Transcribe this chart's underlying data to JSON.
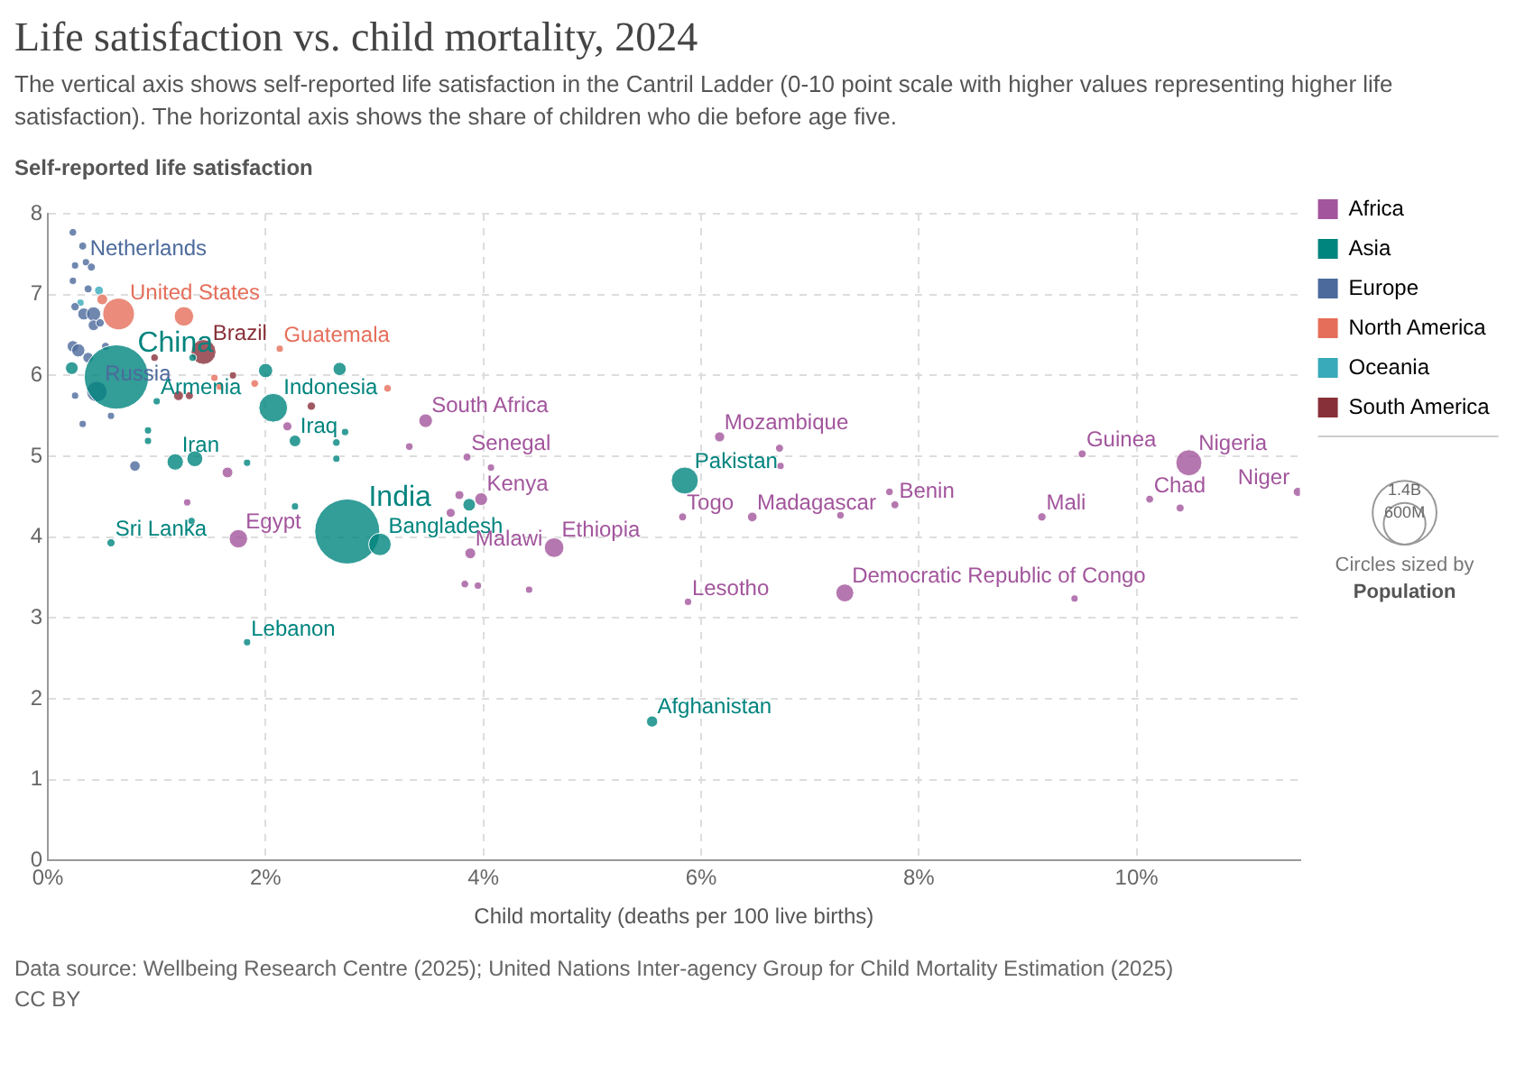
{
  "chart_data": {
    "type": "bubble",
    "title": "Life satisfaction vs. child mortality, 2024",
    "subtitle": "The vertical axis shows self-reported life satisfaction in the Cantril Ladder (0-10 point scale with higher values representing higher life satisfaction). The horizontal axis shows the share of children who die before age five.",
    "xlabel": "Child mortality (deaths per 100 live births)",
    "ylabel": "Self-reported life satisfaction",
    "xlim": [
      0,
      11.5
    ],
    "xticks": [
      {
        "value": 0,
        "label": "0%"
      },
      {
        "value": 2,
        "label": "2%"
      },
      {
        "value": 4,
        "label": "4%"
      },
      {
        "value": 6,
        "label": "6%"
      },
      {
        "value": 8,
        "label": "8%"
      },
      {
        "value": 10,
        "label": "10%"
      }
    ],
    "ylim": [
      0,
      8
    ],
    "yticks": [
      0,
      1,
      2,
      3,
      4,
      5,
      6,
      7,
      8
    ],
    "grid": true,
    "legend": "right",
    "size_legend": [
      {
        "value": 600,
        "label": "600M"
      },
      {
        "value": 1400,
        "label": "1.4B"
      }
    ],
    "series": [
      {
        "name": "Africa",
        "color": "#a2559c",
        "x": [
          3.47,
          3.85,
          3.98,
          3.88,
          4.65,
          1.75,
          5.83,
          5.88,
          6.17,
          6.47,
          7.78,
          7.32,
          9.13,
          9.5,
          10.48,
          10.12,
          11.48,
          7.28,
          7.73,
          6.72,
          6.73,
          10.4,
          9.43,
          3.32,
          4.07,
          3.78,
          3.7,
          3.83,
          3.95,
          4.42,
          1.65,
          2.2,
          1.28
        ],
        "values": [
          5.44,
          4.99,
          4.47,
          3.8,
          3.87,
          3.98,
          4.25,
          3.2,
          5.24,
          4.25,
          4.4,
          3.31,
          4.25,
          5.03,
          4.92,
          4.47,
          4.56,
          4.27,
          4.56,
          5.1,
          4.88,
          4.36,
          3.24,
          5.12,
          4.86,
          4.52,
          4.3,
          3.42,
          3.4,
          3.35,
          4.8,
          5.37,
          4.43
        ],
        "sizes": [
          64,
          22,
          56,
          40,
          132,
          117,
          22,
          18,
          35,
          32,
          22,
          110,
          24,
          22,
          233,
          21,
          28,
          20,
          20,
          22,
          18,
          22,
          18,
          20,
          18,
          28,
          28,
          20,
          18,
          18,
          40,
          28,
          18
        ]
      },
      {
        "name": "Asia",
        "color": "#00847e",
        "x": [
          0.63,
          2.75,
          2.07,
          3.05,
          5.85,
          1.17,
          1.35,
          2.27,
          1.0,
          0.58,
          1.83,
          5.55,
          2.0,
          2.68,
          2.73,
          2.65,
          1.83,
          1.33,
          0.22,
          0.92,
          0.92,
          1.32,
          2.27,
          2.65,
          3.87
        ],
        "values": [
          5.98,
          4.07,
          5.6,
          3.91,
          4.7,
          4.93,
          4.97,
          5.19,
          5.68,
          3.93,
          2.7,
          1.72,
          6.06,
          6.08,
          5.3,
          4.97,
          4.92,
          6.22,
          6.09,
          5.32,
          5.19,
          4.2,
          4.38,
          5.17,
          4.4
        ],
        "sizes": [
          1420,
          1450,
          283,
          174,
          251,
          92,
          87,
          46,
          18,
          23,
          18,
          43,
          70,
          60,
          18,
          18,
          18,
          20,
          55,
          18,
          18,
          18,
          18,
          20,
          55
        ]
      },
      {
        "name": "Europe",
        "color": "#4c6a9c",
        "x": [
          0.35,
          0.45,
          0.23,
          0.32,
          0.25,
          0.4,
          0.23,
          0.37,
          0.25,
          0.33,
          0.42,
          0.42,
          0.23,
          0.28,
          0.37,
          0.53,
          0.25,
          0.32,
          0.58,
          0.8,
          0.48
        ],
        "values": [
          7.4,
          5.8,
          7.77,
          7.6,
          7.36,
          7.34,
          7.17,
          7.07,
          6.85,
          6.76,
          6.76,
          6.62,
          6.36,
          6.31,
          6.22,
          6.36,
          5.75,
          5.4,
          5.5,
          4.88,
          6.65
        ],
        "sizes": [
          18,
          145,
          20,
          22,
          18,
          22,
          18,
          22,
          24,
          50,
          70,
          40,
          45,
          60,
          38,
          22,
          18,
          18,
          18,
          38,
          24
        ]
      },
      {
        "name": "North America",
        "color": "#e56e5a",
        "x": [
          0.65,
          2.13,
          0.5,
          1.25,
          1.53,
          1.9,
          3.12,
          1.58
        ],
        "values": [
          6.76,
          6.33,
          6.94,
          6.73,
          5.97,
          5.9,
          5.84,
          5.86
        ],
        "sizes": [
          345,
          18,
          40,
          130,
          18,
          20,
          20,
          18
        ]
      },
      {
        "name": "Oceania",
        "color": "#38aaba",
        "x": [
          0.47,
          0.3
        ],
        "values": [
          7.05,
          6.9
        ],
        "sizes": [
          27,
          18
        ]
      },
      {
        "name": "South America",
        "color": "#883039",
        "x": [
          1.43,
          1.7,
          2.42,
          0.98,
          1.2,
          1.3
        ],
        "values": [
          6.29,
          6.0,
          5.62,
          6.22,
          5.75,
          5.75
        ],
        "sizes": [
          212,
          18,
          24,
          20,
          34,
          22
        ]
      }
    ],
    "annotations": [
      "Circles sized by",
      "Population",
      "Data source: Wellbeing Research Centre (2025); United Nations Inter-agency Group for Child Mortality Estimation (2025)",
      "CC BY",
      {
        "text": "Netherlands",
        "x": 0.35,
        "y": 7.4
      },
      {
        "text": "United States",
        "x": 0.65,
        "y": 6.76
      },
      {
        "text": "China",
        "x": 0.63,
        "y": 5.98
      },
      {
        "text": "Russia",
        "x": 0.45,
        "y": 5.8
      },
      {
        "text": "Brazil",
        "x": 1.43,
        "y": 6.29
      },
      {
        "text": "Guatemala",
        "x": 2.13,
        "y": 6.33
      },
      {
        "text": "Indonesia",
        "x": 2.07,
        "y": 5.6
      },
      {
        "text": "Armenia",
        "x": 1.0,
        "y": 5.68
      },
      {
        "text": "Iraq",
        "x": 2.27,
        "y": 5.19
      },
      {
        "text": "Iran",
        "x": 1.17,
        "y": 4.93
      },
      {
        "text": "Sri Lanka",
        "x": 0.58,
        "y": 3.93
      },
      {
        "text": "Egypt",
        "x": 1.75,
        "y": 3.98
      },
      {
        "text": "India",
        "x": 2.75,
        "y": 4.07
      },
      {
        "text": "Bangladesh",
        "x": 3.05,
        "y": 3.91
      },
      {
        "text": "Lebanon",
        "x": 1.83,
        "y": 2.7
      },
      {
        "text": "South Africa",
        "x": 3.47,
        "y": 5.44
      },
      {
        "text": "Senegal",
        "x": 3.85,
        "y": 4.99
      },
      {
        "text": "Kenya",
        "x": 3.98,
        "y": 4.47
      },
      {
        "text": "Malawi",
        "x": 3.88,
        "y": 3.8
      },
      {
        "text": "Ethiopia",
        "x": 4.65,
        "y": 3.87
      },
      {
        "text": "Afghanistan",
        "x": 5.55,
        "y": 1.72
      },
      {
        "text": "Pakistan",
        "x": 5.85,
        "y": 4.7
      },
      {
        "text": "Togo",
        "x": 5.83,
        "y": 4.25
      },
      {
        "text": "Lesotho",
        "x": 5.88,
        "y": 3.2
      },
      {
        "text": "Mozambique",
        "x": 6.17,
        "y": 5.24
      },
      {
        "text": "Madagascar",
        "x": 6.47,
        "y": 4.25
      },
      {
        "text": "Benin",
        "x": 7.78,
        "y": 4.4
      },
      {
        "text": "Democratic Republic of Congo",
        "x": 7.32,
        "y": 3.31
      },
      {
        "text": "Mali",
        "x": 9.13,
        "y": 4.25
      },
      {
        "text": "Guinea",
        "x": 9.5,
        "y": 5.03
      },
      {
        "text": "Nigeria",
        "x": 10.48,
        "y": 4.92
      },
      {
        "text": "Chad",
        "x": 10.12,
        "y": 4.47
      },
      {
        "text": "Niger",
        "x": 11.48,
        "y": 4.56
      }
    ]
  }
}
